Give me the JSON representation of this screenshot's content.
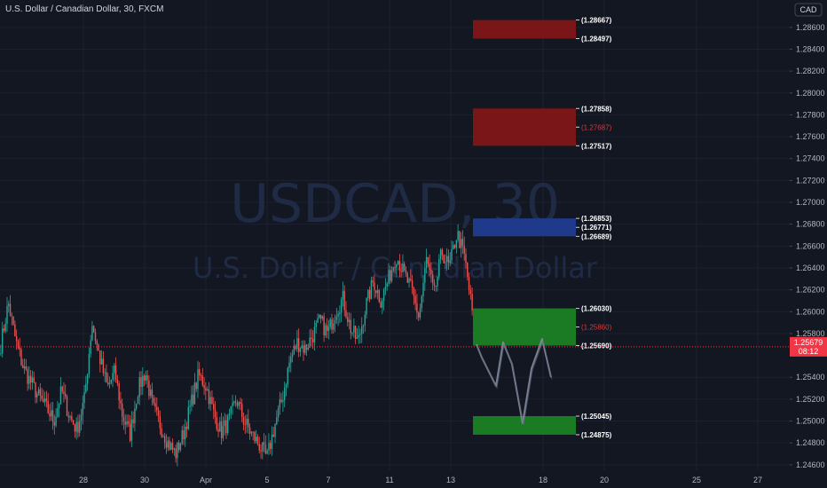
{
  "header": {
    "title": "U.S. Dollar / Canadian Dollar, 30, FXCM"
  },
  "watermark": {
    "symbol": "USDCAD, 30",
    "description": "U.S. Dollar / Canadian Dollar"
  },
  "currency_badge": "CAD",
  "current_price": {
    "value": "1.25679",
    "countdown": "08:12",
    "color": "#f23645"
  },
  "colors": {
    "background": "#131722",
    "up_candle": "#26a69a",
    "down_candle": "#ef5350",
    "resistance_zone": "#7a1518",
    "pivot_zone": "#1f3a8a",
    "support_zone": "#1b7a24",
    "projection_line": "#8a93a6"
  },
  "chart_data": {
    "type": "candlestick",
    "symbol": "USDCAD",
    "timeframe": "30",
    "source": "FXCM",
    "y_axis": {
      "min": 1.2455,
      "max": 1.2885,
      "tick_labels": [
        "1.28600",
        "1.28400",
        "1.28200",
        "1.28000",
        "1.27800",
        "1.27600",
        "1.27400",
        "1.27200",
        "1.27000",
        "1.26800",
        "1.26600",
        "1.26400",
        "1.26200",
        "1.26000",
        "1.25800",
        "1.25400",
        "1.25200",
        "1.25000",
        "1.24800",
        "1.24600"
      ]
    },
    "x_axis": {
      "tick_labels": [
        "28",
        "30",
        "Apr",
        "5",
        "7",
        "11",
        "13",
        "18",
        "20",
        "25",
        "27"
      ]
    },
    "zones": [
      {
        "name": "resistance-1",
        "top": 1.28667,
        "bottom": 1.28497,
        "top_label": "(1.28667)",
        "bottom_label": "(1.28497)",
        "mid_label": "",
        "color": "#7a1518"
      },
      {
        "name": "resistance-2",
        "top": 1.27858,
        "bottom": 1.27517,
        "top_label": "(1.27858)",
        "bottom_label": "(1.27517)",
        "mid_label": "(1.27687)",
        "color": "#7a1518"
      },
      {
        "name": "pivot",
        "top": 1.26853,
        "bottom": 1.26689,
        "top_label": "(1.26853)",
        "bottom_label": "(1.26689)",
        "mid_label": "(1.26771)",
        "color": "#1f3a8a"
      },
      {
        "name": "support-1",
        "top": 1.2603,
        "bottom": 1.2569,
        "top_label": "(1.26030)",
        "bottom_label": "(1.25690)",
        "mid_label": "(1.25860)",
        "color": "#1b7a24"
      },
      {
        "name": "support-2",
        "top": 1.25045,
        "bottom": 1.24875,
        "top_label": "(1.25045)",
        "bottom_label": "(1.24875)",
        "mid_label": "",
        "color": "#1b7a24"
      }
    ],
    "path_anchors": [
      [
        1.257,
        1.2608,
        1.2572,
        1.2548,
        1.2535,
        1.2522
      ],
      [
        1.2512,
        1.25,
        1.2528,
        1.2505,
        1.2492,
        1.252
      ],
      [
        1.259,
        1.2558,
        1.253,
        1.2545,
        1.2505,
        1.2488
      ],
      [
        1.2528,
        1.2545,
        1.2512,
        1.2496,
        1.248,
        1.247
      ],
      [
        1.2488,
        1.2515,
        1.2542,
        1.2532,
        1.2507,
        1.249
      ],
      [
        1.25,
        1.252,
        1.25,
        1.2488,
        1.2478,
        1.2466
      ],
      [
        1.2495,
        1.252,
        1.2555,
        1.2572,
        1.2566,
        1.2578
      ],
      [
        1.2592,
        1.258,
        1.26,
        1.2612,
        1.2585,
        1.2572
      ],
      [
        1.2605,
        1.2628,
        1.261,
        1.263,
        1.2652,
        1.2635
      ],
      [
        1.262,
        1.2595,
        1.2648,
        1.2615,
        1.2655,
        1.264
      ],
      [
        1.2672,
        1.265,
        1.26
      ]
    ],
    "projection": [
      [
        0,
        1.257
      ],
      [
        6,
        1.2558
      ],
      [
        14,
        1.2545
      ],
      [
        22,
        1.2532
      ],
      [
        30,
        1.2572
      ],
      [
        40,
        1.2552
      ],
      [
        52,
        1.2498
      ],
      [
        62,
        1.2548
      ],
      [
        74,
        1.2575
      ],
      [
        84,
        1.254
      ]
    ]
  }
}
